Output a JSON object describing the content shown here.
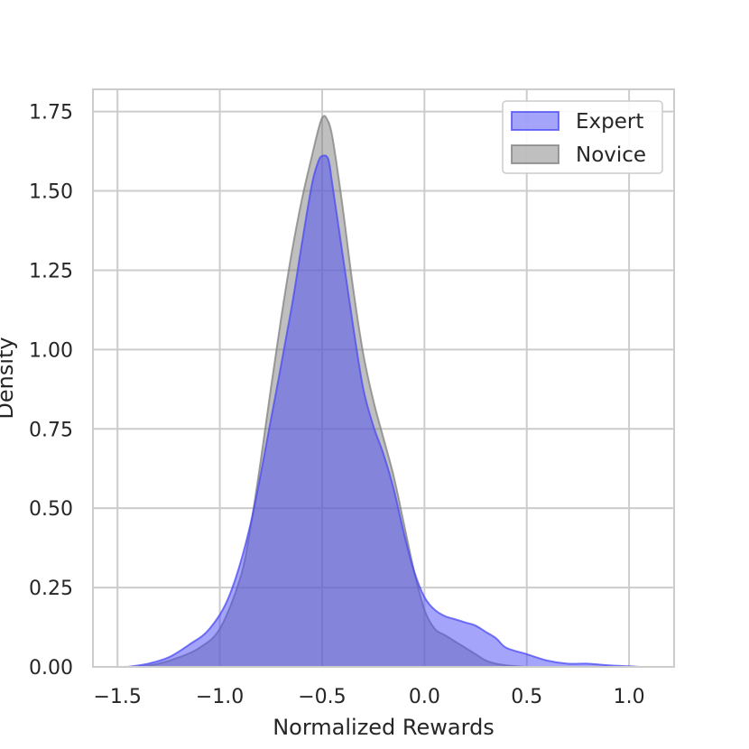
{
  "chart_data": {
    "type": "area",
    "title": "",
    "xlabel": "Normalized Rewards",
    "ylabel": "Density",
    "xlim": [
      -1.62,
      1.22
    ],
    "ylim": [
      0,
      1.82
    ],
    "x_ticks": [
      -1.5,
      -1.0,
      -0.5,
      0.0,
      0.5,
      1.0
    ],
    "x_tick_labels": [
      "−1.5",
      "−1.0",
      "−0.5",
      "0.0",
      "0.5",
      "1.0"
    ],
    "y_ticks": [
      0.0,
      0.25,
      0.5,
      0.75,
      1.0,
      1.25,
      1.5,
      1.75
    ],
    "y_tick_labels": [
      "0.00",
      "0.25",
      "0.50",
      "0.75",
      "1.00",
      "1.25",
      "1.50",
      "1.75"
    ],
    "grid": true,
    "legend_position": "top-right",
    "series": [
      {
        "name": "Expert",
        "color": "#4a4af5",
        "x": [
          -1.45,
          -1.35,
          -1.25,
          -1.15,
          -1.05,
          -0.95,
          -0.85,
          -0.75,
          -0.65,
          -0.6,
          -0.55,
          -0.52,
          -0.5,
          -0.47,
          -0.45,
          -0.4,
          -0.35,
          -0.3,
          -0.25,
          -0.2,
          -0.15,
          -0.1,
          -0.05,
          0.0,
          0.05,
          0.1,
          0.15,
          0.2,
          0.25,
          0.3,
          0.35,
          0.4,
          0.5,
          0.6,
          0.7,
          0.8,
          0.9,
          1.0,
          1.05
        ],
        "y": [
          0.0,
          0.01,
          0.03,
          0.07,
          0.12,
          0.23,
          0.45,
          0.78,
          1.13,
          1.33,
          1.52,
          1.59,
          1.61,
          1.6,
          1.52,
          1.3,
          1.08,
          0.88,
          0.76,
          0.67,
          0.56,
          0.42,
          0.3,
          0.22,
          0.18,
          0.16,
          0.15,
          0.14,
          0.13,
          0.11,
          0.09,
          0.06,
          0.04,
          0.02,
          0.01,
          0.01,
          0.005,
          0.002,
          0.0
        ]
      },
      {
        "name": "Novice",
        "color": "#808080",
        "x": [
          -1.4,
          -1.3,
          -1.2,
          -1.1,
          -1.0,
          -0.9,
          -0.85,
          -0.8,
          -0.75,
          -0.7,
          -0.65,
          -0.6,
          -0.55,
          -0.52,
          -0.5,
          -0.48,
          -0.45,
          -0.4,
          -0.35,
          -0.3,
          -0.25,
          -0.2,
          -0.15,
          -0.1,
          -0.05,
          0.0,
          0.05,
          0.1,
          0.15,
          0.2,
          0.25,
          0.3,
          0.35,
          0.4,
          0.45,
          0.5
        ],
        "y": [
          0.0,
          0.01,
          0.03,
          0.06,
          0.12,
          0.28,
          0.44,
          0.65,
          0.88,
          1.1,
          1.3,
          1.47,
          1.61,
          1.69,
          1.73,
          1.73,
          1.67,
          1.45,
          1.2,
          0.99,
          0.84,
          0.72,
          0.6,
          0.45,
          0.3,
          0.18,
          0.12,
          0.1,
          0.08,
          0.06,
          0.04,
          0.02,
          0.01,
          0.005,
          0.002,
          0.0
        ]
      }
    ]
  }
}
